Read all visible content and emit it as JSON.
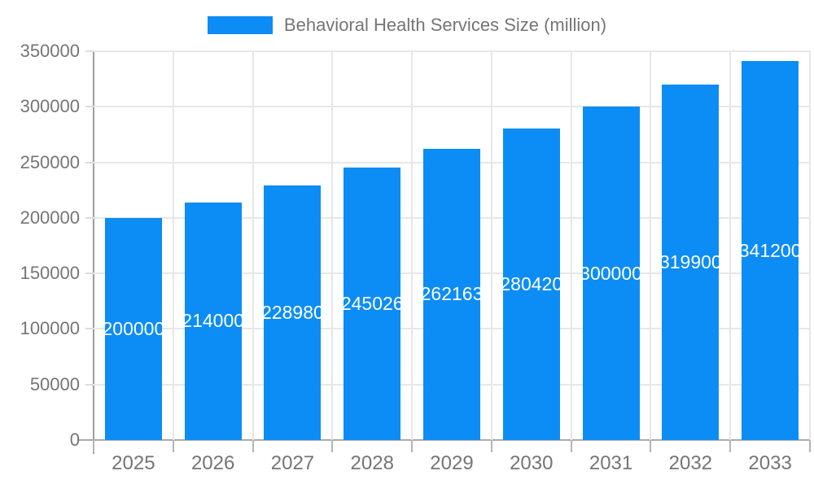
{
  "legend": {
    "label": "Behavioral Health Services Size (million)"
  },
  "colors": {
    "bar": "#0c8df5",
    "bar_label": "#ffffff",
    "axis_text": "#757575",
    "gridline": "#e7e7e7",
    "axis_line": "#9e9e9e"
  },
  "chart_data": {
    "type": "bar",
    "title": "Behavioral Health Services Size (million)",
    "categories": [
      "2025",
      "2026",
      "2027",
      "2028",
      "2029",
      "2030",
      "2031",
      "2032",
      "2033"
    ],
    "series": [
      {
        "name": "Behavioral Health Services Size (million)",
        "values": [
          200000,
          214000,
          228980,
          245026,
          262163,
          280420,
          300000,
          319900,
          341200
        ]
      }
    ],
    "xlabel": "",
    "ylabel": "",
    "ylim": [
      0,
      350000
    ],
    "ytick_step": 50000,
    "grid": true,
    "legend_position": "top",
    "bar_labels_inside": true
  }
}
